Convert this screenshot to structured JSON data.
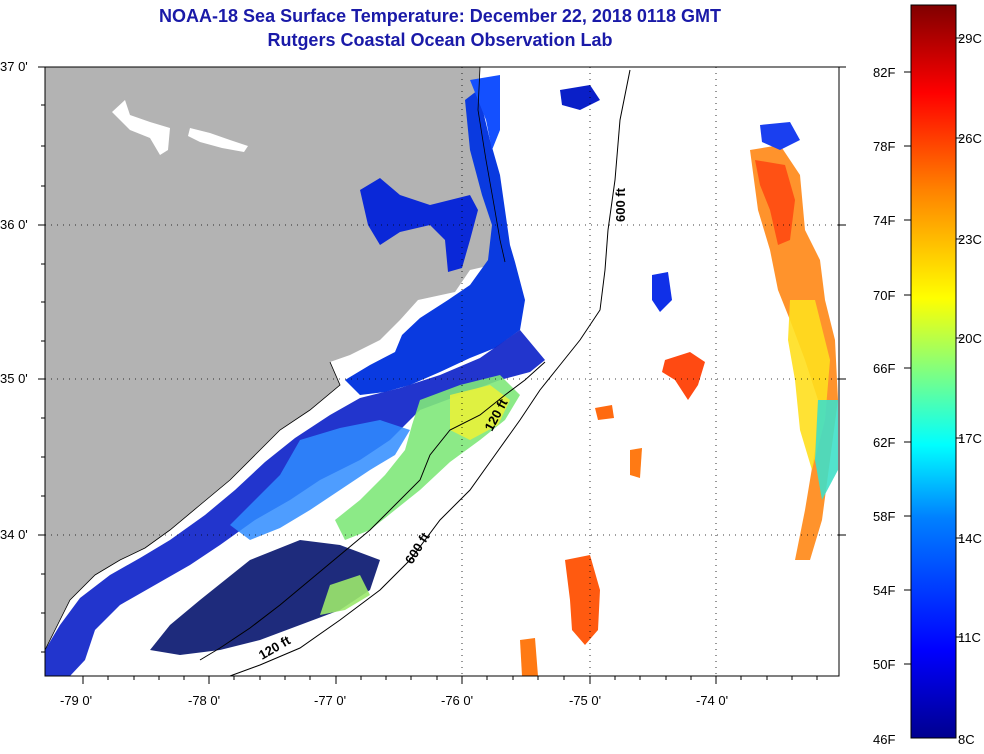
{
  "header": {
    "title": "NOAA-18 Sea Surface Temperature:  December 22, 2018 0118 GMT",
    "subtitle": "Rutgers Coastal Ocean Observation Lab"
  },
  "map": {
    "lat_labels": [
      "37 0'",
      "36 0'",
      "35 0'",
      "34 0'"
    ],
    "lon_labels": [
      "-79 0'",
      "-78 0'",
      "-77 0'",
      "-76 0'",
      "-75 0'",
      "-74 0'"
    ],
    "contours": [
      "600 ft",
      "120 ft",
      "600 ft",
      "120 ft"
    ]
  },
  "colorbar": {
    "fahrenheit": [
      "82F",
      "78F",
      "74F",
      "70F",
      "66F",
      "62F",
      "58F",
      "54F",
      "50F",
      "46F"
    ],
    "celsius": [
      "29C",
      "26C",
      "23C",
      "20C",
      "17C",
      "14C",
      "11C",
      "8C"
    ]
  },
  "colors": {
    "title": "#1a1aa8",
    "land": "#b3b3b3",
    "water_no_data": "#ffffff"
  }
}
